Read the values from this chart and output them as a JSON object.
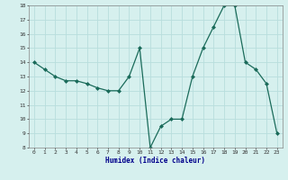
{
  "x": [
    0,
    1,
    2,
    3,
    4,
    5,
    6,
    7,
    8,
    9,
    10,
    11,
    12,
    13,
    14,
    15,
    16,
    17,
    18,
    19,
    20,
    21,
    22,
    23
  ],
  "y": [
    14,
    13.5,
    13,
    12.7,
    12.7,
    12.5,
    12.2,
    12,
    12,
    13,
    15,
    8,
    9.5,
    10,
    10,
    13,
    15,
    16.5,
    18,
    18,
    14,
    13.5,
    12.5,
    9
  ],
  "xlabel": "Humidex (Indice chaleur)",
  "xlim": [
    -0.5,
    23.5
  ],
  "ylim": [
    8,
    18
  ],
  "yticks": [
    8,
    9,
    10,
    11,
    12,
    13,
    14,
    15,
    16,
    17,
    18
  ],
  "xtick_labels": [
    "0",
    "1",
    "2",
    "3",
    "4",
    "5",
    "6",
    "7",
    "8",
    "9",
    "10",
    "11",
    "12",
    "13",
    "14",
    "15",
    "16",
    "17",
    "18",
    "19",
    "20",
    "21",
    "22",
    "23"
  ],
  "line_color": "#1a6b5a",
  "marker": "D",
  "marker_size": 2,
  "bg_color": "#d6f0ee",
  "grid_color": "#b8dedd",
  "axes_bg": "#d6f0ee",
  "xlabel_color": "#00008b",
  "tick_color": "#333333",
  "spine_color": "#888888"
}
